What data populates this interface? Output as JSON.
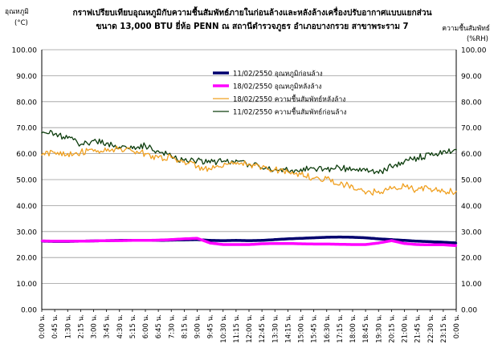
{
  "chart_data": {
    "type": "line",
    "title": "กราฟเปรียบเทียบอุณหภูมิกับความชื้นสัมพัทธ์ภายในก่อนล้างและหลังล้างเครื่องปรับอากาศแบบแยกส่วน",
    "subtitle": "ขนาด 13,000 BTU ยี่ห้อ PENN  ณ สถานีตำรวจภูธร อำเภอบางกรวย สาขาพระราม 7",
    "ylabel_left": "อุณหภูมิ",
    "ylabel_left_unit": "(°C)",
    "ylabel_right": "ความชื้นสัมพัทธ์",
    "ylabel_right_unit": "(%RH)",
    "ylim": [
      0,
      100
    ],
    "y_ticks": [
      "0.00",
      "10.00",
      "20.00",
      "30.00",
      "40.00",
      "50.00",
      "60.00",
      "70.00",
      "80.00",
      "90.00",
      "100.00"
    ],
    "categories": [
      "0:00 น.",
      "0:45 น.",
      "1:30 น.",
      "2:15 น.",
      "3:00 น.",
      "3:45 น.",
      "4:30 น.",
      "5:15 น.",
      "6:00 น.",
      "6:45 น.",
      "7:30 น.",
      "8:15 น.",
      "9:00 น.",
      "9:45 น.",
      "10:30 น.",
      "11:15 น.",
      "12:00 น.",
      "12:45 น.",
      "13:30 น.",
      "14:15 น.",
      "15:00 น.",
      "15:45 น.",
      "16:30 น.",
      "17:15 น.",
      "18:00 น.",
      "18:45 น.",
      "19:30 น.",
      "20:15 น.",
      "21:00 น.",
      "21:45 น.",
      "22:30 น.",
      "23:15 น.",
      "0:00 น."
    ],
    "legend_position": "top-right",
    "grid": true,
    "series": [
      {
        "name": "11/02/2550 อุณหภูมิก่อนล้าง",
        "color": "#00006e",
        "width": 3.5,
        "values": [
          26.3,
          26.2,
          26.2,
          26.3,
          26.4,
          26.5,
          26.6,
          26.6,
          26.6,
          26.6,
          26.7,
          26.8,
          26.9,
          26.6,
          26.5,
          26.6,
          26.5,
          26.6,
          26.9,
          27.2,
          27.4,
          27.6,
          27.8,
          27.9,
          27.8,
          27.6,
          27.2,
          26.9,
          26.6,
          26.3,
          26.1,
          25.9,
          25.6
        ]
      },
      {
        "name": "18/02/2550 อุณหภูมิหลังล้าง",
        "color": "#ff00ff",
        "width": 3.5,
        "values": [
          26.4,
          26.3,
          26.3,
          26.3,
          26.4,
          26.5,
          26.5,
          26.6,
          26.6,
          26.7,
          26.9,
          27.2,
          27.4,
          25.6,
          25.0,
          25.0,
          25.0,
          25.3,
          25.4,
          25.4,
          25.3,
          25.2,
          25.2,
          25.1,
          25.0,
          25.0,
          25.6,
          26.5,
          25.4,
          25.0,
          24.9,
          24.9,
          24.6
        ]
      },
      {
        "name": "18/02/2550 ความชื้นสัมพัทธ์หลังล้าง",
        "color": "#f0a020",
        "width": 1.3,
        "values": [
          59.5,
          60.5,
          60.0,
          60.5,
          61.0,
          61.0,
          62.0,
          61.0,
          60.0,
          58.5,
          58.5,
          57.0,
          55.0,
          54.0,
          55.0,
          56.0,
          56.0,
          54.5,
          54.0,
          53.0,
          52.0,
          50.5,
          50.5,
          48.0,
          47.5,
          44.5,
          45.5,
          46.5,
          47.5,
          46.0,
          46.5,
          45.5,
          45.5
        ]
      },
      {
        "name": "11/02/2550 ความชื้นสัมพัทธ์ก่อนล้าง",
        "color": "#0d3d0d",
        "width": 1.3,
        "values": [
          68.0,
          67.5,
          66.0,
          63.5,
          65.0,
          64.0,
          62.5,
          62.0,
          63.0,
          61.0,
          59.0,
          57.5,
          57.5,
          56.5,
          57.0,
          57.5,
          56.0,
          54.5,
          54.0,
          53.5,
          54.0,
          54.5,
          54.0,
          54.5,
          54.0,
          53.5,
          52.5,
          55.0,
          57.0,
          58.5,
          59.5,
          61.0,
          61.5
        ]
      }
    ]
  }
}
